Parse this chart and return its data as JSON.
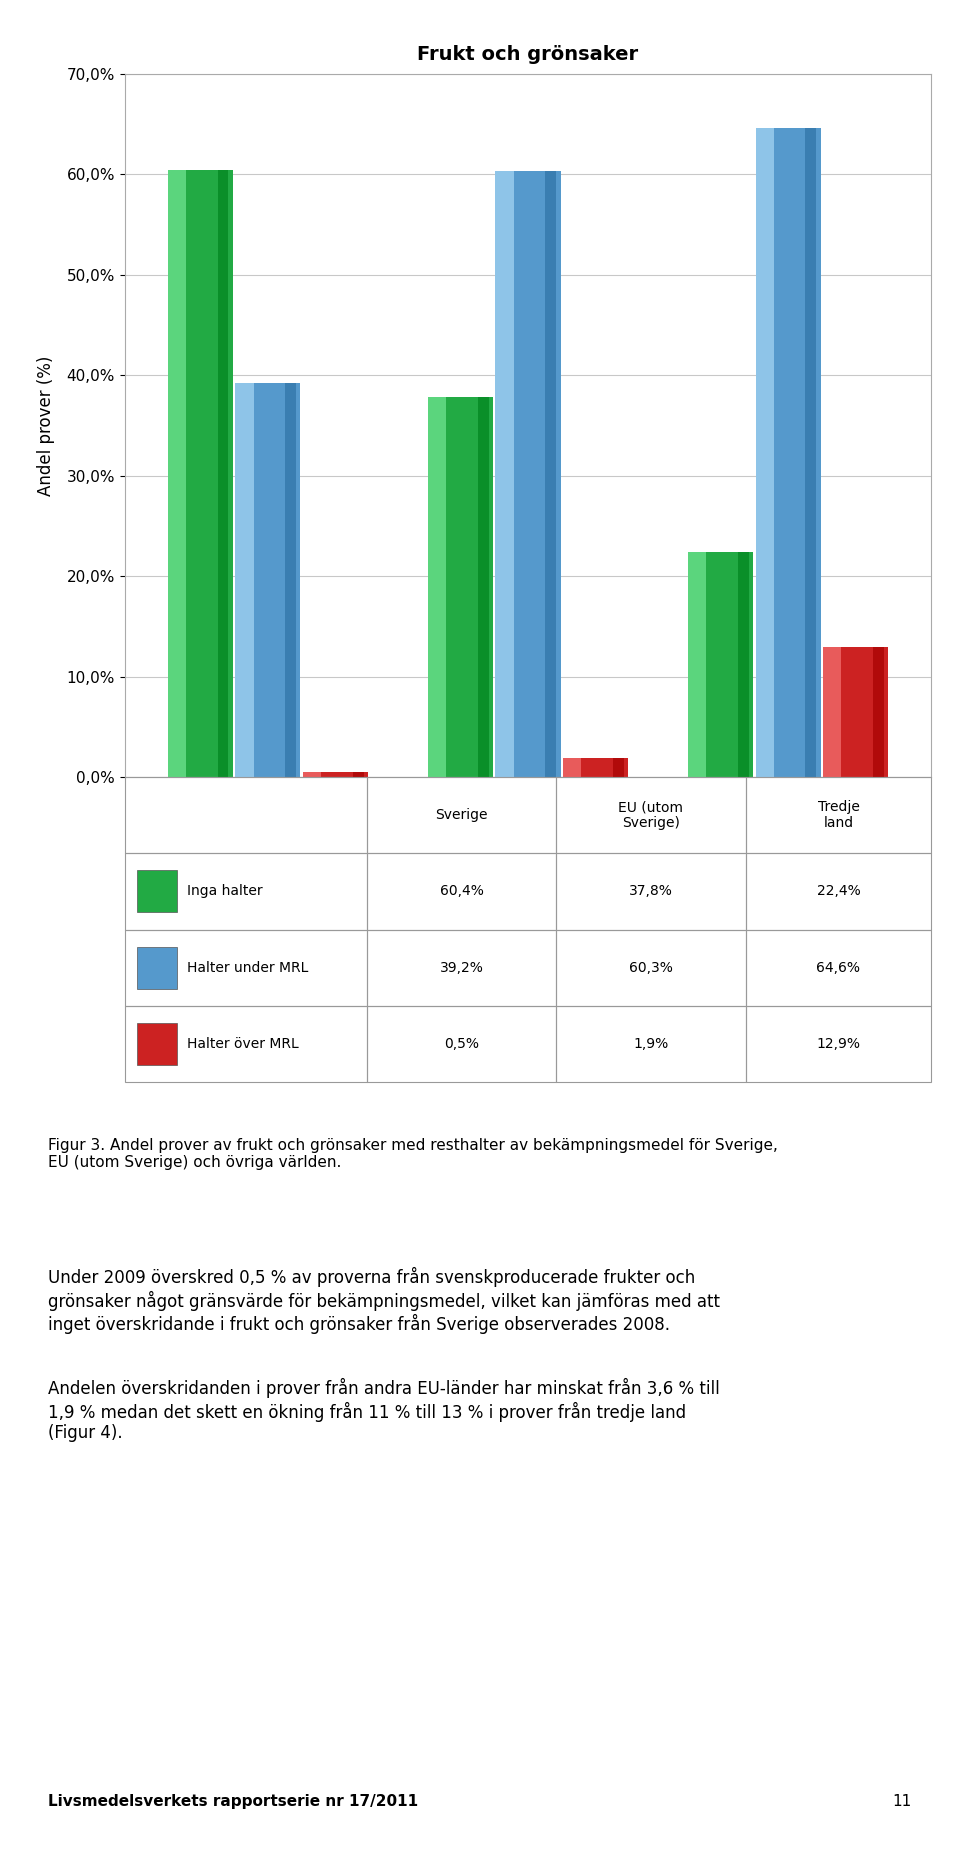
{
  "title": "Frukt och grönsaker",
  "ylabel": "Andel prover (%)",
  "categories": [
    "Sverige",
    "EU (utom\nSverige)",
    "Tredje\nland"
  ],
  "series": [
    {
      "label": "Inga halter",
      "values": [
        60.4,
        37.8,
        22.4
      ],
      "color": "#22AA44",
      "highlight": "#66DD88"
    },
    {
      "label": "Halter under MRL",
      "values": [
        39.2,
        60.3,
        64.6
      ],
      "color": "#5599CC",
      "highlight": "#99CCEE"
    },
    {
      "label": "Halter över MRL",
      "values": [
        0.5,
        1.9,
        12.9
      ],
      "color": "#CC2222",
      "highlight": "#EE6666"
    }
  ],
  "ylim": [
    0,
    70
  ],
  "yticks": [
    0.0,
    10.0,
    20.0,
    30.0,
    40.0,
    50.0,
    60.0,
    70.0
  ],
  "table_rows": [
    [
      "Inga halter",
      "60,4%",
      "37,8%",
      "22,4%"
    ],
    [
      "Halter under MRL",
      "39,2%",
      "60,3%",
      "64,6%"
    ],
    [
      "Halter över MRL",
      "0,5%",
      "1,9%",
      "12,9%"
    ]
  ],
  "table_row_colors": [
    "#22AA44",
    "#5599CC",
    "#CC2222"
  ],
  "cat_labels": [
    "Sverige",
    "EU (utom\nSverige)",
    "Tredje\nland"
  ],
  "figtext_caption": "Figur 3. Andel prover av frukt och grönsaker med resthalter av bekämpningsmedel för Sverige,\nEU (utom Sverige) och övriga världen.",
  "figtext_body1": "Under 2009 överskred 0,5 % av proverna från svenskproducerade frukter och\ngrönsaker något gränsvärde för bekämpningsmedel, vilket kan jämföras med att\ninget överskridande i frukt och grönsaker från Sverige observerades 2008.",
  "figtext_body2": "Andelen överskridanden i prover från andra EU-länder har minskat från 3,6 % till\n1,9 % medan det skett en ökning från 11 % till 13 % i prover från tredje land\n(Figur 4).",
  "figtext_footer": "Livsmedelsverkets rapportserie nr 17/2011",
  "figtext_page": "11",
  "background_color": "#FFFFFF"
}
